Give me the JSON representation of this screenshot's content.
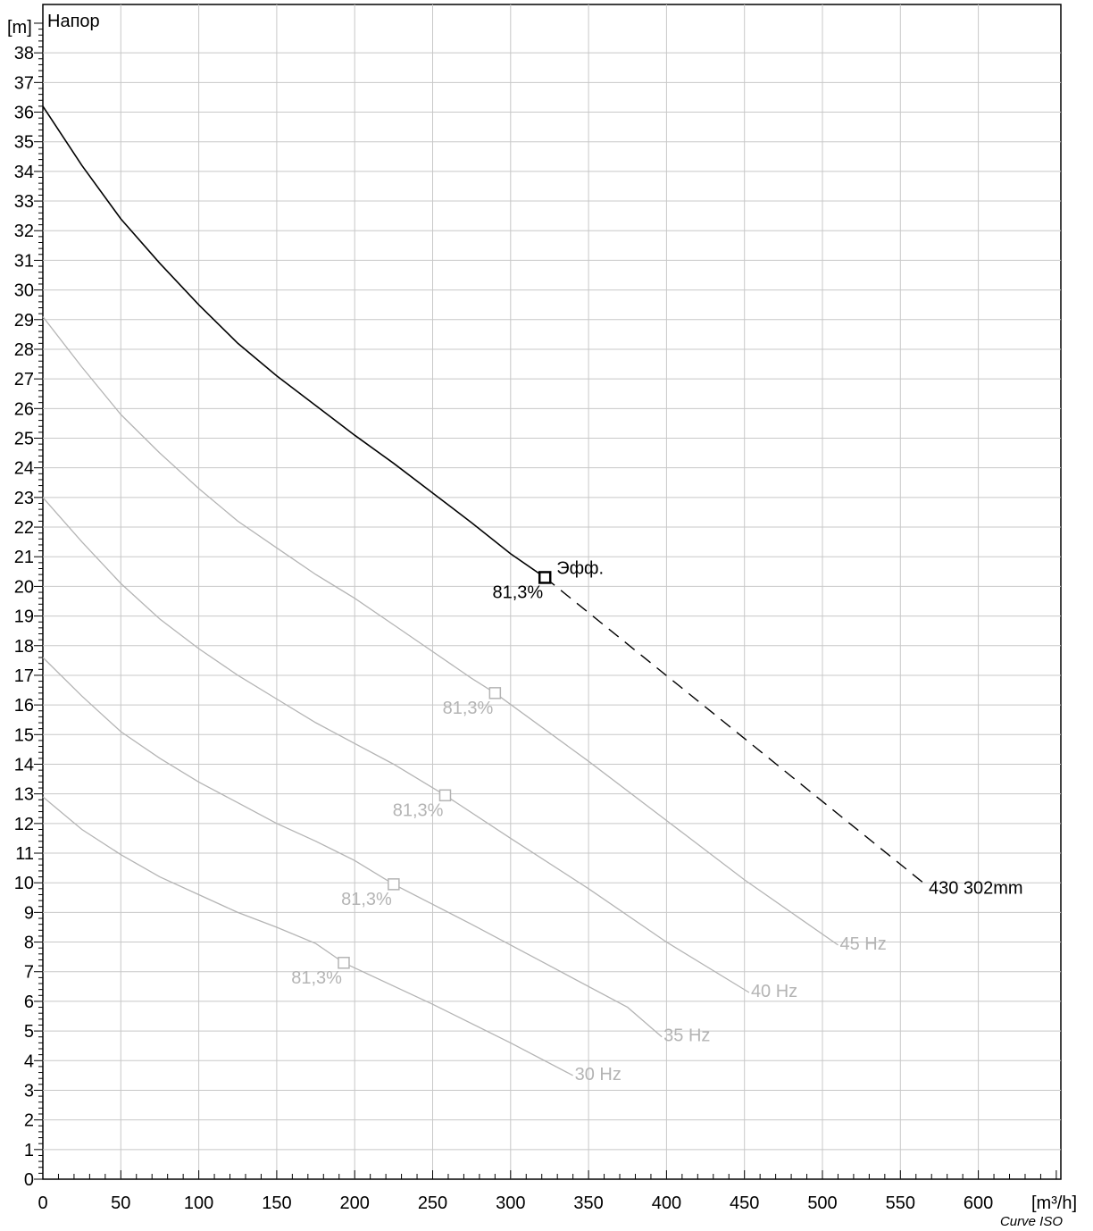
{
  "chart_data": {
    "type": "line",
    "title": "Напор",
    "ylabel": "[m]",
    "xlabel": "[m³/h]",
    "footer": "Curve ISO",
    "xlim": [
      0,
      650
    ],
    "ylim": [
      0,
      39
    ],
    "x_ticks": [
      0,
      50,
      100,
      150,
      200,
      250,
      300,
      350,
      400,
      450,
      500,
      550,
      600
    ],
    "y_ticks": [
      0,
      1,
      2,
      3,
      4,
      5,
      6,
      7,
      8,
      9,
      10,
      11,
      12,
      13,
      14,
      15,
      16,
      17,
      18,
      19,
      20,
      21,
      22,
      23,
      24,
      25,
      26,
      27,
      28,
      29,
      30,
      31,
      32,
      33,
      34,
      35,
      36,
      37,
      38
    ],
    "grid": true,
    "colors": {
      "main": "#000000",
      "speed": "#b4b4b4",
      "grid": "#c8c8c8"
    },
    "main_curve": {
      "name": "430 302mm",
      "points": [
        [
          0,
          36.2
        ],
        [
          25,
          34.2
        ],
        [
          50,
          32.4
        ],
        [
          75,
          30.9
        ],
        [
          100,
          29.5
        ],
        [
          125,
          28.2
        ],
        [
          150,
          27.1
        ],
        [
          175,
          26.1
        ],
        [
          200,
          25.1
        ],
        [
          225,
          24.15
        ],
        [
          250,
          23.15
        ],
        [
          275,
          22.15
        ],
        [
          300,
          21.1
        ],
        [
          322,
          20.3
        ]
      ],
      "extension": [
        [
          322,
          20.3
        ],
        [
          567,
          9.9
        ]
      ],
      "duty_point": {
        "x": 322,
        "y": 20.3,
        "efficiency_label": "81,3%",
        "label": "Эфф."
      }
    },
    "series": [
      {
        "name": "45 Hz",
        "points": [
          [
            0,
            29.1
          ],
          [
            25,
            27.4
          ],
          [
            50,
            25.8
          ],
          [
            75,
            24.5
          ],
          [
            100,
            23.3
          ],
          [
            125,
            22.2
          ],
          [
            150,
            21.3
          ],
          [
            175,
            20.4
          ],
          [
            200,
            19.6
          ],
          [
            225,
            18.7
          ],
          [
            250,
            17.8
          ],
          [
            275,
            16.9
          ],
          [
            290,
            16.4
          ],
          [
            350,
            14.1
          ],
          [
            400,
            12.1
          ],
          [
            450,
            10.1
          ],
          [
            510,
            7.9
          ]
        ],
        "point": {
          "x": 290,
          "y": 16.4,
          "efficiency_label": "81,3%"
        }
      },
      {
        "name": "40 Hz",
        "points": [
          [
            0,
            23.0
          ],
          [
            25,
            21.5
          ],
          [
            50,
            20.1
          ],
          [
            75,
            18.9
          ],
          [
            100,
            17.9
          ],
          [
            125,
            17.0
          ],
          [
            150,
            16.2
          ],
          [
            175,
            15.4
          ],
          [
            200,
            14.7
          ],
          [
            225,
            14.0
          ],
          [
            258,
            12.95
          ],
          [
            300,
            11.5
          ],
          [
            350,
            9.8
          ],
          [
            400,
            8.0
          ],
          [
            453,
            6.3
          ]
        ],
        "point": {
          "x": 258,
          "y": 12.95,
          "efficiency_label": "81,3%"
        }
      },
      {
        "name": "35 Hz",
        "points": [
          [
            0,
            17.6
          ],
          [
            25,
            16.3
          ],
          [
            50,
            15.1
          ],
          [
            75,
            14.2
          ],
          [
            100,
            13.4
          ],
          [
            125,
            12.7
          ],
          [
            150,
            12.0
          ],
          [
            175,
            11.4
          ],
          [
            200,
            10.75
          ],
          [
            225,
            9.95
          ],
          [
            275,
            8.6
          ],
          [
            325,
            7.2
          ],
          [
            375,
            5.8
          ],
          [
            397,
            4.8
          ]
        ],
        "point": {
          "x": 225,
          "y": 9.95,
          "efficiency_label": "81,3%"
        }
      },
      {
        "name": "30 Hz",
        "points": [
          [
            0,
            12.9
          ],
          [
            25,
            11.8
          ],
          [
            50,
            10.95
          ],
          [
            75,
            10.2
          ],
          [
            100,
            9.6
          ],
          [
            125,
            9.0
          ],
          [
            150,
            8.5
          ],
          [
            175,
            7.95
          ],
          [
            193,
            7.3
          ],
          [
            250,
            5.9
          ],
          [
            300,
            4.6
          ],
          [
            340,
            3.5
          ]
        ],
        "point": {
          "x": 193,
          "y": 7.3,
          "efficiency_label": "81,3%"
        }
      }
    ]
  }
}
